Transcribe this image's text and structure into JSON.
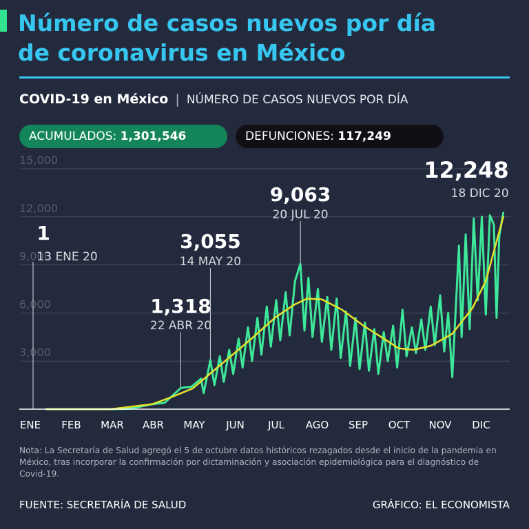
{
  "title_line1": "Número de casos nuevos por día",
  "title_line2": "de coronavirus en México",
  "subtitle_bold": "COVID-19 en México",
  "subtitle_sep": "|",
  "subtitle_light": "NÚMERO DE CASOS NUEVOS POR DÍA",
  "badges": {
    "accumulated_label": "ACUMULADOS:",
    "accumulated_value": "1,301,546",
    "deaths_label": "DEFUNCIONES:",
    "deaths_value": "117,249"
  },
  "colors": {
    "title": "#36c6f0",
    "accent": "#33e38f",
    "daily_line": "#3ee89a",
    "trend_line": "#e6e22c",
    "deaths_pill": "#0f0f14",
    "accumulated_pill": "#14855a"
  },
  "chart_data": {
    "type": "line",
    "title": "",
    "xlabel": "",
    "ylabel": "",
    "ylim": [
      0,
      15000
    ],
    "y_ticks": [
      {
        "value": 3000,
        "label": "3,000"
      },
      {
        "value": 6000,
        "label": "6,000"
      },
      {
        "value": 9000,
        "label": "9,000"
      },
      {
        "value": 12000,
        "label": "12,000"
      },
      {
        "value": 15000,
        "label": "15,000"
      }
    ],
    "x_ticks": [
      {
        "month": 0,
        "label": "ENE"
      },
      {
        "month": 1,
        "label": "FEB"
      },
      {
        "month": 2,
        "label": "MAR"
      },
      {
        "month": 3,
        "label": "ABR"
      },
      {
        "month": 4,
        "label": "MAY"
      },
      {
        "month": 5,
        "label": "JUN"
      },
      {
        "month": 6,
        "label": "JUL"
      },
      {
        "month": 7,
        "label": "AGO"
      },
      {
        "month": 8,
        "label": "SEP"
      },
      {
        "month": 9,
        "label": "OCT"
      },
      {
        "month": 10,
        "label": "NOV"
      },
      {
        "month": 11,
        "label": "DIC"
      }
    ],
    "series": [
      {
        "key": "daily",
        "points": [
          [
            "2020-01-13",
            1
          ],
          [
            "2020-02-28",
            0
          ],
          [
            "2020-03-15",
            20
          ],
          [
            "2020-03-31",
            300
          ],
          [
            "2020-04-10",
            400
          ],
          [
            "2020-04-22",
            1318
          ],
          [
            "2020-04-30",
            1400
          ],
          [
            "2020-05-07",
            1900
          ],
          [
            "2020-05-09",
            1000
          ],
          [
            "2020-05-14",
            3055
          ],
          [
            "2020-05-17",
            1500
          ],
          [
            "2020-05-21",
            3300
          ],
          [
            "2020-05-24",
            1700
          ],
          [
            "2020-05-28",
            3700
          ],
          [
            "2020-05-31",
            2200
          ],
          [
            "2020-06-04",
            4400
          ],
          [
            "2020-06-07",
            2600
          ],
          [
            "2020-06-11",
            5100
          ],
          [
            "2020-06-14",
            3000
          ],
          [
            "2020-06-18",
            5700
          ],
          [
            "2020-06-21",
            3400
          ],
          [
            "2020-06-25",
            6400
          ],
          [
            "2020-06-28",
            3900
          ],
          [
            "2020-07-02",
            6800
          ],
          [
            "2020-07-05",
            4300
          ],
          [
            "2020-07-09",
            7300
          ],
          [
            "2020-07-12",
            4600
          ],
          [
            "2020-07-16",
            8000
          ],
          [
            "2020-07-20",
            9063
          ],
          [
            "2020-07-23",
            4900
          ],
          [
            "2020-07-26",
            8200
          ],
          [
            "2020-07-29",
            4500
          ],
          [
            "2020-08-02",
            7500
          ],
          [
            "2020-08-05",
            4200
          ],
          [
            "2020-08-09",
            7000
          ],
          [
            "2020-08-12",
            3700
          ],
          [
            "2020-08-16",
            6900
          ],
          [
            "2020-08-19",
            3200
          ],
          [
            "2020-08-23",
            6100
          ],
          [
            "2020-08-26",
            2700
          ],
          [
            "2020-08-30",
            5700
          ],
          [
            "2020-09-02",
            2500
          ],
          [
            "2020-09-06",
            5400
          ],
          [
            "2020-09-09",
            2400
          ],
          [
            "2020-09-13",
            5000
          ],
          [
            "2020-09-16",
            2200
          ],
          [
            "2020-09-20",
            4800
          ],
          [
            "2020-09-23",
            3000
          ],
          [
            "2020-09-27",
            5200
          ],
          [
            "2020-09-30",
            2600
          ],
          [
            "2020-10-04",
            6200
          ],
          [
            "2020-10-07",
            3300
          ],
          [
            "2020-10-11",
            5100
          ],
          [
            "2020-10-14",
            3500
          ],
          [
            "2020-10-18",
            5600
          ],
          [
            "2020-10-21",
            3700
          ],
          [
            "2020-10-25",
            6400
          ],
          [
            "2020-10-28",
            4000
          ],
          [
            "2020-11-01",
            7100
          ],
          [
            "2020-11-04",
            3600
          ],
          [
            "2020-11-07",
            6000
          ],
          [
            "2020-11-10",
            2000
          ],
          [
            "2020-11-12",
            5300
          ],
          [
            "2020-11-15",
            10200
          ],
          [
            "2020-11-17",
            4500
          ],
          [
            "2020-11-20",
            10900
          ],
          [
            "2020-11-23",
            5000
          ],
          [
            "2020-11-26",
            11900
          ],
          [
            "2020-11-29",
            6800
          ],
          [
            "2020-12-02",
            12000
          ],
          [
            "2020-12-05",
            5900
          ],
          [
            "2020-12-08",
            12100
          ],
          [
            "2020-12-11",
            11500
          ],
          [
            "2020-12-13",
            5700
          ],
          [
            "2020-12-15",
            10800
          ],
          [
            "2020-12-18",
            12248
          ]
        ]
      },
      {
        "key": "trend",
        "points": [
          [
            "2020-01-13",
            1
          ],
          [
            "2020-03-01",
            0
          ],
          [
            "2020-04-01",
            320
          ],
          [
            "2020-04-15",
            750
          ],
          [
            "2020-05-01",
            1300
          ],
          [
            "2020-05-15",
            2300
          ],
          [
            "2020-06-01",
            3500
          ],
          [
            "2020-06-15",
            4500
          ],
          [
            "2020-07-01",
            5700
          ],
          [
            "2020-07-15",
            6500
          ],
          [
            "2020-07-25",
            6900
          ],
          [
            "2020-08-05",
            6850
          ],
          [
            "2020-08-20",
            6200
          ],
          [
            "2020-09-05",
            5200
          ],
          [
            "2020-09-20",
            4400
          ],
          [
            "2020-10-01",
            3800
          ],
          [
            "2020-10-12",
            3700
          ],
          [
            "2020-10-25",
            3950
          ],
          [
            "2020-11-10",
            4700
          ],
          [
            "2020-11-25",
            6300
          ],
          [
            "2020-12-05",
            8000
          ],
          [
            "2020-12-18",
            12000
          ]
        ]
      }
    ],
    "annotations": [
      {
        "date": "2020-01-13",
        "value": 1,
        "value_label": "1",
        "date_label": "13 ENE 20"
      },
      {
        "date": "2020-04-22",
        "value": 1318,
        "value_label": "1,318",
        "date_label": "22 ABR 20"
      },
      {
        "date": "2020-05-14",
        "value": 3055,
        "value_label": "3,055",
        "date_label": "14 MAY 20"
      },
      {
        "date": "2020-07-20",
        "value": 9063,
        "value_label": "9,063",
        "date_label": "20 JUL 20"
      },
      {
        "date": "2020-12-18",
        "value": 12248,
        "value_label": "12,248",
        "date_label": "18 DIC 20"
      }
    ]
  },
  "note": "Nota: La Secretaría de Salud agregó el 5 de octubre datos históricos rezagados desde el inicio de la pandemia en México, tras incorporar la confirmación por dictaminación y asociación epidemiológica para el diagnóstico de Covid-19.",
  "source": "FUENTE: SECRETARÍA DE SALUD",
  "credit": "GRÁFICO: EL ECONOMISTA"
}
